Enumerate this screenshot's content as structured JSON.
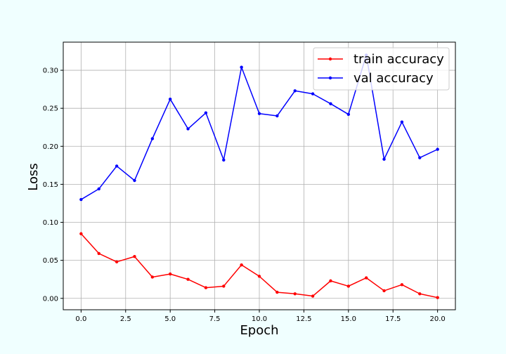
{
  "chart_data": {
    "type": "line",
    "title": "",
    "xlabel": "Epoch",
    "ylabel": "Loss",
    "xlim": [
      -1,
      21
    ],
    "ylim": [
      -0.015,
      0.337
    ],
    "x_ticks": [
      "0.0",
      "2.5",
      "5.0",
      "7.5",
      "10.0",
      "12.5",
      "15.0",
      "17.5",
      "20.0"
    ],
    "y_ticks": [
      "0.00",
      "0.05",
      "0.10",
      "0.15",
      "0.20",
      "0.25",
      "0.30"
    ],
    "grid": true,
    "legend_position": "top-right",
    "x": [
      0,
      1,
      2,
      3,
      4,
      5,
      6,
      7,
      8,
      9,
      10,
      11,
      12,
      13,
      14,
      15,
      16,
      17,
      18,
      19,
      20
    ],
    "series": [
      {
        "name": "train accuracy",
        "color": "#ff0000",
        "values": [
          0.085,
          0.059,
          0.048,
          0.055,
          0.028,
          0.032,
          0.025,
          0.014,
          0.016,
          0.044,
          0.029,
          0.008,
          0.006,
          0.003,
          0.023,
          0.016,
          0.027,
          0.01,
          0.018,
          0.006,
          0.001
        ]
      },
      {
        "name": "val accuracy",
        "color": "#0000ff",
        "values": [
          0.13,
          0.144,
          0.174,
          0.155,
          0.21,
          0.262,
          0.223,
          0.244,
          0.182,
          0.304,
          0.243,
          0.24,
          0.273,
          0.269,
          0.256,
          0.242,
          0.32,
          0.183,
          0.232,
          0.185,
          0.196
        ]
      }
    ]
  }
}
